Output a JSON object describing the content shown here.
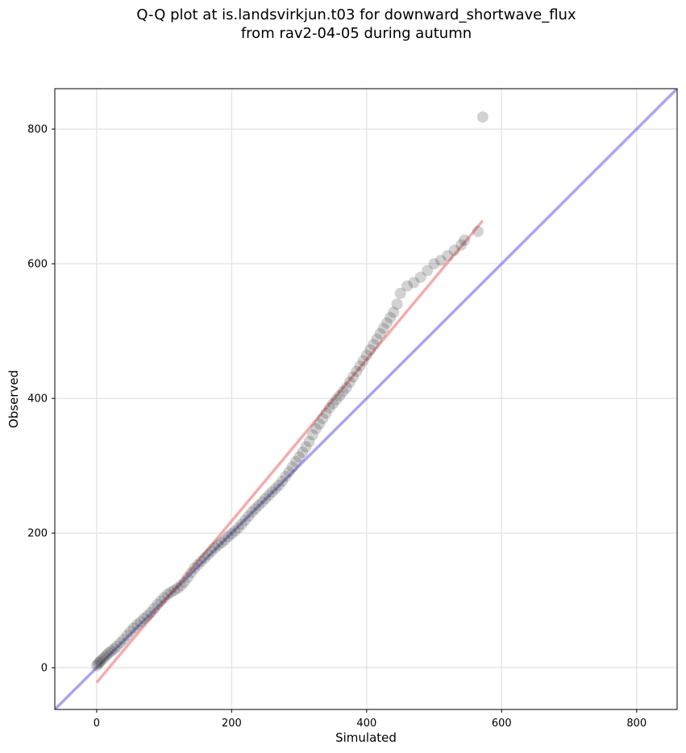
{
  "chart_data": {
    "type": "scatter",
    "title_line1": "Q-Q plot at is.landsvirkjun.t03 for downward_shortwave_flux",
    "title_line2": "from rav2-04-05 during autumn",
    "xlabel": "Simulated",
    "ylabel": "Observed",
    "xlim": [
      -62,
      860
    ],
    "ylim": [
      -62,
      860
    ],
    "xticks": [
      0,
      200,
      400,
      600,
      800
    ],
    "yticks": [
      0,
      200,
      400,
      600,
      800
    ],
    "grid": true,
    "colors": {
      "points": "#333333",
      "identity_line": "#6a6ae6",
      "fit_line": "#f08080",
      "grid": "#e6e6e6"
    },
    "identity_line": {
      "from": [
        -62,
        -62
      ],
      "to": [
        860,
        860
      ]
    },
    "fit_line": {
      "from": [
        0,
        -22
      ],
      "to": [
        572,
        664
      ]
    },
    "series": [
      {
        "x": [
          0,
          2,
          4,
          6,
          9,
          12,
          15,
          18,
          22,
          26,
          30,
          35,
          40,
          45,
          50,
          55,
          60,
          65,
          70,
          75,
          80,
          85,
          90,
          95,
          100,
          105,
          110,
          115,
          120,
          125,
          130,
          135,
          140,
          145,
          150,
          155,
          160,
          165,
          170,
          175,
          180,
          185,
          190,
          195,
          200,
          205,
          210,
          215,
          220,
          225,
          230,
          235,
          240,
          245,
          250,
          255,
          260,
          265,
          270,
          275,
          280,
          285,
          290,
          295,
          300,
          305,
          310,
          315,
          320,
          325,
          330,
          335,
          340,
          345,
          350,
          355,
          360,
          365,
          370,
          375,
          380,
          385,
          390,
          395,
          400,
          405,
          410,
          415,
          420,
          425,
          430,
          435,
          440,
          445,
          450,
          460,
          470,
          480,
          490,
          500,
          510,
          520,
          530,
          540,
          545,
          565,
          572
        ],
        "y": [
          3,
          6,
          8,
          10,
          13,
          16,
          19,
          22,
          25,
          28,
          32,
          37,
          42,
          48,
          54,
          59,
          64,
          68,
          73,
          77,
          82,
          88,
          94,
          99,
          104,
          109,
          112,
          115,
          118,
          122,
          127,
          134,
          141,
          148,
          153,
          158,
          163,
          168,
          173,
          178,
          182,
          186,
          190,
          195,
          199,
          203,
          208,
          213,
          219,
          225,
          231,
          236,
          241,
          246,
          251,
          256,
          261,
          266,
          271,
          277,
          284,
          291,
          298,
          306,
          313,
          320,
          328,
          336,
          346,
          355,
          362,
          370,
          378,
          386,
          392,
          398,
          404,
          410,
          416,
          424,
          432,
          440,
          448,
          456,
          464,
          472,
          480,
          488,
          496,
          504,
          512,
          520,
          528,
          540,
          556,
          567,
          572,
          580,
          590,
          600,
          605,
          612,
          620,
          628,
          635,
          648,
          818
        ]
      }
    ]
  }
}
